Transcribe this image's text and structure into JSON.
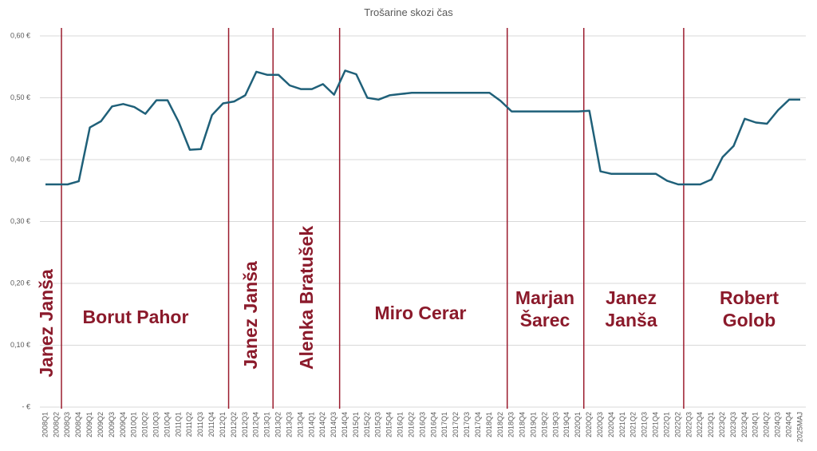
{
  "chart_data": {
    "type": "line",
    "title": "Trošarine skozi čas",
    "categories": [
      "2008Q1",
      "2008Q2",
      "2008Q3",
      "2008Q4",
      "2009Q1",
      "2009Q2",
      "2009Q3",
      "2009Q4",
      "2010Q1",
      "2010Q2",
      "2010Q3",
      "2010Q4",
      "2011Q1",
      "2011Q2",
      "2011Q3",
      "2011Q4",
      "2012Q1",
      "2012Q2",
      "2012Q3",
      "2012Q4",
      "2013Q1",
      "2013Q2",
      "2013Q3",
      "2013Q4",
      "2014Q1",
      "2014Q2",
      "2014Q3",
      "2014Q4",
      "2015Q1",
      "2015Q2",
      "2015Q3",
      "2015Q4",
      "2016Q1",
      "2016Q2",
      "2016Q3",
      "2016Q4",
      "2017Q1",
      "2017Q2",
      "2017Q3",
      "2017Q4",
      "2018Q1",
      "2018Q2",
      "2018Q3",
      "2018Q4",
      "2019Q1",
      "2019Q2",
      "2019Q3",
      "2019Q4",
      "2020Q1",
      "2020Q2",
      "2020Q3",
      "2020Q4",
      "2021Q1",
      "2021Q2",
      "2021Q3",
      "2021Q4",
      "2022Q1",
      "2022Q2",
      "2022Q3",
      "2022Q4",
      "2023Q1",
      "2023Q2",
      "2023Q3",
      "2023Q4",
      "2024Q1",
      "2024Q2",
      "2024Q3",
      "2024Q4",
      "2025MAJ"
    ],
    "series": [
      {
        "name": "Trošarine",
        "color": "#1f6079",
        "values": [
          0.36,
          0.36,
          0.36,
          0.365,
          0.452,
          0.462,
          0.486,
          0.49,
          0.485,
          0.474,
          0.496,
          0.496,
          0.461,
          0.416,
          0.417,
          0.472,
          0.491,
          0.494,
          0.504,
          0.542,
          0.537,
          0.537,
          0.52,
          0.514,
          0.514,
          0.522,
          0.505,
          0.544,
          0.538,
          0.5,
          0.497,
          0.504,
          0.506,
          0.508,
          0.508,
          0.508,
          0.508,
          0.508,
          0.508,
          0.508,
          0.508,
          0.495,
          0.478,
          0.478,
          0.478,
          0.478,
          0.478,
          0.478,
          0.478,
          0.479,
          0.381,
          0.377,
          0.377,
          0.377,
          0.377,
          0.377,
          0.366,
          0.36,
          0.36,
          0.36,
          0.368,
          0.404,
          0.422,
          0.466,
          0.46,
          0.458,
          0.48,
          0.497,
          0.497
        ]
      }
    ],
    "ylim": [
      0,
      0.6
    ],
    "yticks": [
      {
        "value": 0,
        "label": "-  €"
      },
      {
        "value": 0.1,
        "label": "0,10 €"
      },
      {
        "value": 0.2,
        "label": "0,20 €"
      },
      {
        "value": 0.3,
        "label": "0,30 €"
      },
      {
        "value": 0.4,
        "label": "0,40 €"
      },
      {
        "value": 0.5,
        "label": "0,50 €"
      },
      {
        "value": 0.6,
        "label": "0,60 €"
      }
    ],
    "grid": true,
    "annotations": [
      {
        "lines": [
          "Janez Janša"
        ]
      },
      {
        "lines": [
          "Borut Pahor"
        ]
      },
      {
        "lines": [
          "Janez Janša"
        ]
      },
      {
        "lines": [
          "Alenka Bratušek"
        ]
      },
      {
        "lines": [
          "Miro Cerar"
        ]
      },
      {
        "lines": [
          "Marjan",
          "Šarec"
        ]
      },
      {
        "lines": [
          "Janez",
          "Janša"
        ]
      },
      {
        "lines": [
          "Robert",
          "Golob"
        ]
      }
    ]
  }
}
